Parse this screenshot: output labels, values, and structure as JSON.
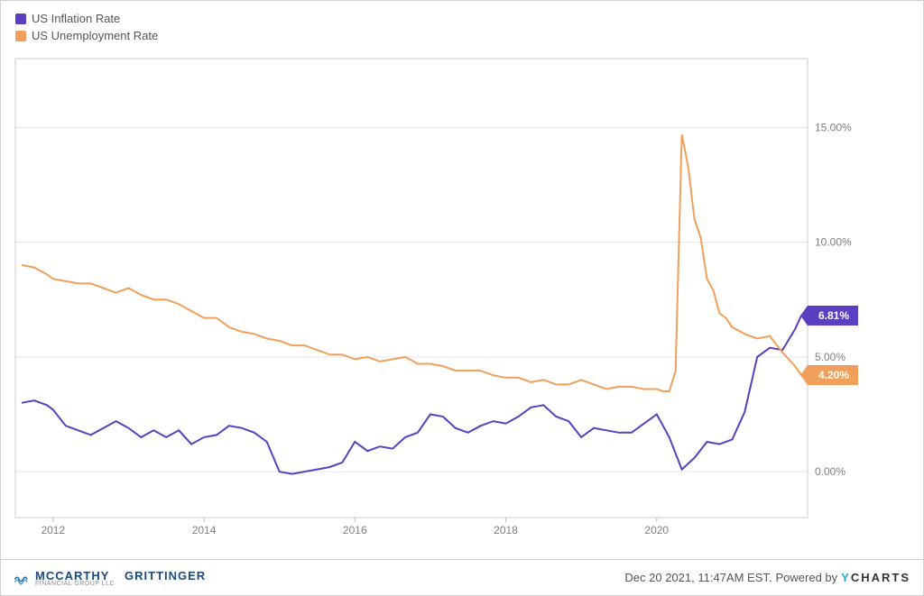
{
  "legend": {
    "items": [
      {
        "label": "US Inflation Rate",
        "color": "#5a3fc0"
      },
      {
        "label": "US Unemployment Rate",
        "color": "#f0a05a"
      }
    ]
  },
  "chart": {
    "type": "line",
    "background_color": "#ffffff",
    "grid_color": "#e6e6e6",
    "plot_border_color": "#cccccc",
    "line_width": 2,
    "x": {
      "min": 2011.5,
      "max": 2022.0,
      "ticks": [
        2012,
        2014,
        2016,
        2018,
        2020
      ],
      "labels": [
        "2012",
        "2014",
        "2016",
        "2018",
        "2020"
      ],
      "label_color": "#808080",
      "label_fontsize": 12
    },
    "y": {
      "min": -2.0,
      "max": 18.0,
      "ticks": [
        0,
        5,
        10,
        15
      ],
      "labels": [
        "0.00%",
        "5.00%",
        "10.00%",
        "15.00%"
      ],
      "label_color": "#808080",
      "label_fontsize": 12,
      "side": "right"
    },
    "series": [
      {
        "name": "US Inflation Rate",
        "color": "#5a3fc0",
        "end_label": "6.81%",
        "points": [
          [
            2011.583,
            3.0
          ],
          [
            2011.75,
            3.1
          ],
          [
            2011.917,
            2.9
          ],
          [
            2012.0,
            2.7
          ],
          [
            2012.167,
            2.0
          ],
          [
            2012.333,
            1.8
          ],
          [
            2012.5,
            1.6
          ],
          [
            2012.667,
            1.9
          ],
          [
            2012.833,
            2.2
          ],
          [
            2013.0,
            1.9
          ],
          [
            2013.167,
            1.5
          ],
          [
            2013.333,
            1.8
          ],
          [
            2013.5,
            1.5
          ],
          [
            2013.667,
            1.8
          ],
          [
            2013.833,
            1.2
          ],
          [
            2014.0,
            1.5
          ],
          [
            2014.167,
            1.6
          ],
          [
            2014.333,
            2.0
          ],
          [
            2014.5,
            1.9
          ],
          [
            2014.667,
            1.7
          ],
          [
            2014.833,
            1.3
          ],
          [
            2015.0,
            0.0
          ],
          [
            2015.167,
            -0.1
          ],
          [
            2015.333,
            0.0
          ],
          [
            2015.5,
            0.1
          ],
          [
            2015.667,
            0.2
          ],
          [
            2015.833,
            0.4
          ],
          [
            2016.0,
            1.3
          ],
          [
            2016.167,
            0.9
          ],
          [
            2016.333,
            1.1
          ],
          [
            2016.5,
            1.0
          ],
          [
            2016.667,
            1.5
          ],
          [
            2016.833,
            1.7
          ],
          [
            2017.0,
            2.5
          ],
          [
            2017.167,
            2.4
          ],
          [
            2017.333,
            1.9
          ],
          [
            2017.5,
            1.7
          ],
          [
            2017.667,
            2.0
          ],
          [
            2017.833,
            2.2
          ],
          [
            2018.0,
            2.1
          ],
          [
            2018.167,
            2.4
          ],
          [
            2018.333,
            2.8
          ],
          [
            2018.5,
            2.9
          ],
          [
            2018.667,
            2.4
          ],
          [
            2018.833,
            2.2
          ],
          [
            2019.0,
            1.5
          ],
          [
            2019.167,
            1.9
          ],
          [
            2019.333,
            1.8
          ],
          [
            2019.5,
            1.7
          ],
          [
            2019.667,
            1.7
          ],
          [
            2019.833,
            2.1
          ],
          [
            2020.0,
            2.5
          ],
          [
            2020.167,
            1.5
          ],
          [
            2020.333,
            0.1
          ],
          [
            2020.5,
            0.6
          ],
          [
            2020.667,
            1.3
          ],
          [
            2020.833,
            1.2
          ],
          [
            2021.0,
            1.4
          ],
          [
            2021.167,
            2.6
          ],
          [
            2021.333,
            5.0
          ],
          [
            2021.5,
            5.4
          ],
          [
            2021.667,
            5.3
          ],
          [
            2021.833,
            6.2
          ],
          [
            2021.917,
            6.81
          ]
        ]
      },
      {
        "name": "US Unemployment Rate",
        "color": "#f0a05a",
        "end_label": "4.20%",
        "points": [
          [
            2011.583,
            9.0
          ],
          [
            2011.75,
            8.9
          ],
          [
            2011.917,
            8.6
          ],
          [
            2012.0,
            8.4
          ],
          [
            2012.167,
            8.3
          ],
          [
            2012.333,
            8.2
          ],
          [
            2012.5,
            8.2
          ],
          [
            2012.667,
            8.0
          ],
          [
            2012.833,
            7.8
          ],
          [
            2013.0,
            8.0
          ],
          [
            2013.167,
            7.7
          ],
          [
            2013.333,
            7.5
          ],
          [
            2013.5,
            7.5
          ],
          [
            2013.667,
            7.3
          ],
          [
            2013.833,
            7.0
          ],
          [
            2014.0,
            6.7
          ],
          [
            2014.167,
            6.7
          ],
          [
            2014.333,
            6.3
          ],
          [
            2014.5,
            6.1
          ],
          [
            2014.667,
            6.0
          ],
          [
            2014.833,
            5.8
          ],
          [
            2015.0,
            5.7
          ],
          [
            2015.167,
            5.5
          ],
          [
            2015.333,
            5.5
          ],
          [
            2015.5,
            5.3
          ],
          [
            2015.667,
            5.1
          ],
          [
            2015.833,
            5.1
          ],
          [
            2016.0,
            4.9
          ],
          [
            2016.167,
            5.0
          ],
          [
            2016.333,
            4.8
          ],
          [
            2016.5,
            4.9
          ],
          [
            2016.667,
            5.0
          ],
          [
            2016.833,
            4.7
          ],
          [
            2017.0,
            4.7
          ],
          [
            2017.167,
            4.6
          ],
          [
            2017.333,
            4.4
          ],
          [
            2017.5,
            4.4
          ],
          [
            2017.667,
            4.4
          ],
          [
            2017.833,
            4.2
          ],
          [
            2018.0,
            4.1
          ],
          [
            2018.167,
            4.1
          ],
          [
            2018.333,
            3.9
          ],
          [
            2018.5,
            4.0
          ],
          [
            2018.667,
            3.8
          ],
          [
            2018.833,
            3.8
          ],
          [
            2019.0,
            4.0
          ],
          [
            2019.167,
            3.8
          ],
          [
            2019.333,
            3.6
          ],
          [
            2019.5,
            3.7
          ],
          [
            2019.667,
            3.7
          ],
          [
            2019.833,
            3.6
          ],
          [
            2020.0,
            3.6
          ],
          [
            2020.083,
            3.5
          ],
          [
            2020.167,
            3.5
          ],
          [
            2020.25,
            4.4
          ],
          [
            2020.333,
            14.7
          ],
          [
            2020.417,
            13.3
          ],
          [
            2020.5,
            11.0
          ],
          [
            2020.583,
            10.2
          ],
          [
            2020.667,
            8.4
          ],
          [
            2020.75,
            7.9
          ],
          [
            2020.833,
            6.9
          ],
          [
            2020.917,
            6.7
          ],
          [
            2021.0,
            6.3
          ],
          [
            2021.167,
            6.0
          ],
          [
            2021.333,
            5.8
          ],
          [
            2021.5,
            5.9
          ],
          [
            2021.667,
            5.2
          ],
          [
            2021.833,
            4.6
          ],
          [
            2021.917,
            4.2
          ]
        ]
      }
    ]
  },
  "footer": {
    "brand": {
      "name1": "MCCARTHY",
      "name2": "GRITTINGER",
      "sub": "FINANCIAL GROUP LLC",
      "icon_color": "#1a6aa8"
    },
    "timestamp": "Dec 20 2021, 11:47AM EST.",
    "powered_by": "Powered by",
    "provider": "CHARTS",
    "provider_prefix": "Y",
    "provider_color": "#2aa4d4"
  }
}
